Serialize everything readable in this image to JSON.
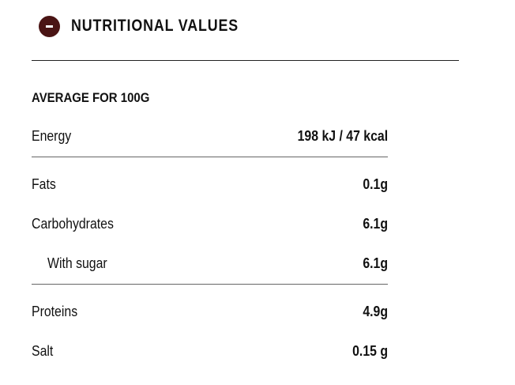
{
  "header": {
    "title": "NUTRITIONAL VALUES"
  },
  "table": {
    "caption": "AVERAGE FOR 100G",
    "rows": [
      [
        "Energy",
        "198 kJ / 47 kcal"
      ],
      [
        "Fats",
        "0.1g"
      ],
      [
        "Carbohydrates",
        "6.1g"
      ],
      [
        "With sugar",
        "6.1g"
      ],
      [
        "Proteins",
        "4.9g"
      ],
      [
        "Salt",
        "0.15 g"
      ]
    ]
  }
}
